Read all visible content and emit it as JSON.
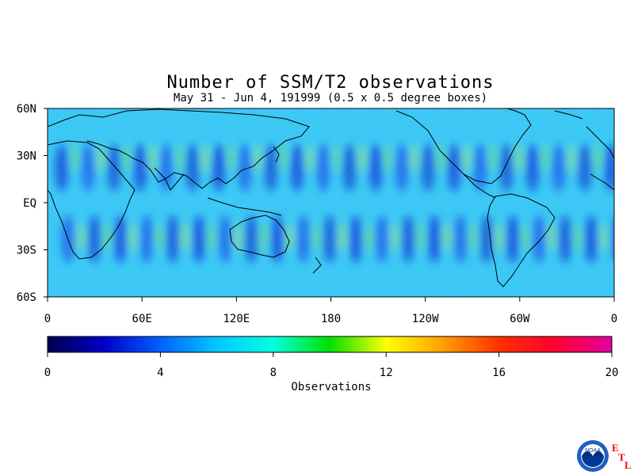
{
  "chart_data": {
    "type": "heatmap",
    "title": "Number of SSM/T2 observations",
    "subtitle": "May 31 - Jun 4, 191999 (0.5 x 0.5 degree boxes)",
    "x_tick_labels": [
      "0",
      "60E",
      "120E",
      "180",
      "120W",
      "60W",
      "0"
    ],
    "y_tick_labels": [
      "60N",
      "30N",
      "EQ",
      "30S",
      "60S"
    ],
    "xlim": [
      0,
      360
    ],
    "ylim": [
      -60,
      60
    ],
    "colorbar": {
      "label": "Observations",
      "range": [
        0,
        20
      ],
      "tick_labels": [
        "0",
        "4",
        "8",
        "12",
        "16",
        "20"
      ],
      "colors": [
        "#000050",
        "#0000c8",
        "#0060ff",
        "#00c8ff",
        "#00ffe0",
        "#00e000",
        "#ffff00",
        "#ffa000",
        "#ff3000",
        "#ff0030",
        "#e000a0"
      ]
    },
    "typical_value_range": [
      3,
      12
    ]
  },
  "logo": {
    "agency": "NOAA",
    "letters": [
      "E",
      "T",
      "L"
    ]
  }
}
